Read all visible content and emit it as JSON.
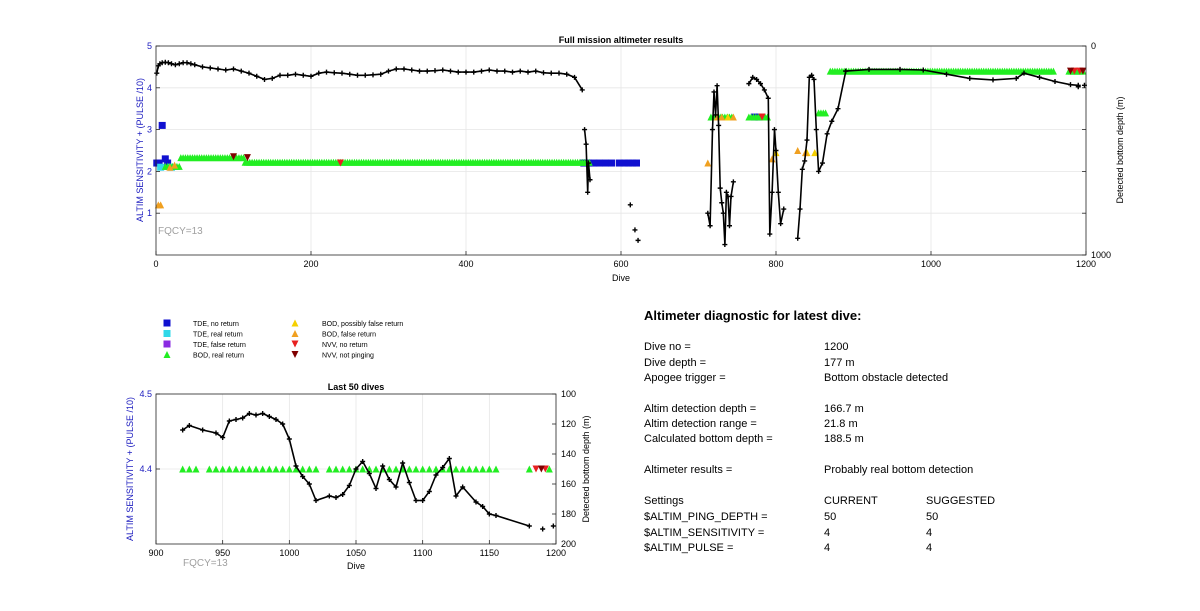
{
  "main_chart": {
    "title": "Full mission altimeter results",
    "xlabel": "Dive",
    "ylabel_left": "ALTIM SENSITIVITY + (PULSE /10)",
    "ylabel_right": "Detected bottom depth (m)",
    "annotation": "FQCY=13",
    "xlim": [
      0,
      1200
    ],
    "ylim_left": [
      0,
      5
    ],
    "ylim_right": [
      1000,
      0
    ],
    "x_ticks": [
      "0",
      "200",
      "400",
      "600",
      "800",
      "1000",
      "1200"
    ],
    "y_ticks_left": [
      "1",
      "2",
      "3",
      "4",
      "5"
    ],
    "y_ticks_right_shown": [
      "0",
      "1000"
    ]
  },
  "legend": {
    "items": [
      {
        "label": "TDE, no return",
        "marker": "square",
        "color": "#1010d0"
      },
      {
        "label": "TDE, real return",
        "marker": "square",
        "color": "#30d8e8"
      },
      {
        "label": "TDE, false return",
        "marker": "square",
        "color": "#8a2be2"
      },
      {
        "label": "BOD, real return",
        "marker": "triangle-up",
        "color": "#22ee22"
      },
      {
        "label": "BOD, possibly false return",
        "marker": "triangle-up",
        "color": "#f5d000"
      },
      {
        "label": "BOD, false return",
        "marker": "triangle-up",
        "color": "#f0a020"
      },
      {
        "label": "NVV, no return",
        "marker": "triangle-down",
        "color": "#e82020"
      },
      {
        "label": "NVV, not pinging",
        "marker": "triangle-down",
        "color": "#800000"
      }
    ]
  },
  "small_chart": {
    "title": "Last 50 dives",
    "xlabel": "Dive",
    "ylabel_left": "ALTIM SENSITIVITY + (PULSE /10)",
    "ylabel_right": "Detected bottom depth (m)",
    "annotation": "FQCY=13",
    "xlim": [
      900,
      1200
    ],
    "ylim_left": [
      4.3,
      4.5
    ],
    "ylim_right": [
      200,
      100
    ],
    "x_ticks": [
      "900",
      "950",
      "1000",
      "1050",
      "1100",
      "1150",
      "1200"
    ],
    "y_ticks_left": [
      "4.4",
      "4.5"
    ],
    "y_ticks_right": [
      "100",
      "120",
      "140",
      "160",
      "180",
      "200"
    ]
  },
  "diagnostic": {
    "title": "Altimeter diagnostic for latest dive:",
    "dive_no_label": "Dive no =",
    "dive_no": "1200",
    "dive_depth_label": "Dive depth =",
    "dive_depth": "177 m",
    "apogee_label": "Apogee trigger =",
    "apogee": "Bottom obstacle detected",
    "altim_depth_label": "Altim detection depth =",
    "altim_depth": "166.7 m",
    "altim_range_label": "Altim detection range =",
    "altim_range": "21.8 m",
    "calc_depth_label": "Calculated bottom depth =",
    "calc_depth": "188.5 m",
    "results_label": "Altimeter results =",
    "results": "Probably real bottom detection",
    "settings_label": "Settings",
    "current_label": "CURRENT",
    "suggested_label": "SUGGESTED",
    "ping_label": "$ALTIM_PING_DEPTH =",
    "ping_current": "50",
    "ping_suggested": "50",
    "sens_label": "$ALTIM_SENSITIVITY =",
    "sens_current": "4",
    "sens_suggested": "4",
    "pulse_label": "$ALTIM_PULSE =",
    "pulse_current": "4",
    "pulse_suggested": "4"
  },
  "colors": {
    "depth_line": "#000000",
    "left_axis_label": "#2020c0",
    "grid": "#e6e6e6",
    "annotation": "#a0a0a0"
  },
  "chart_data": [
    {
      "type": "scatter",
      "title": "Full mission altimeter results",
      "xlabel": "Dive",
      "ylabel": "ALTIM SENSITIVITY + (PULSE /10)",
      "y2label": "Detected bottom depth (m)",
      "xlim": [
        0,
        1200
      ],
      "ylim": [
        0,
        5
      ],
      "y2lim": [
        1000,
        0
      ],
      "grid": true,
      "series": [
        {
          "name": "TDE, no return",
          "marker": "square",
          "color": "#1010d0",
          "x": [
            1,
            4,
            8,
            12,
            15,
            552,
            558,
            565,
            572,
            580,
            588,
            598,
            605,
            610,
            615,
            620,
            772,
            778
          ],
          "y": [
            2.2,
            2.2,
            3.1,
            2.3,
            2.2,
            2.2,
            2.2,
            2.2,
            2.2,
            2.2,
            2.2,
            2.2,
            2.2,
            2.2,
            2.2,
            2.2,
            3.3,
            3.3
          ]
        },
        {
          "name": "TDE, real return",
          "marker": "square",
          "color": "#30d8e8",
          "x": [
            6,
            20
          ],
          "y": [
            2.1,
            2.1
          ]
        },
        {
          "name": "BOD, real return",
          "marker": "triangle-up",
          "color": "#22ee22",
          "segments": [
            {
              "x": [
                12,
                30
              ],
              "y": [
                2.12,
                2.12
              ]
            },
            {
              "x": [
                32,
                115
              ],
              "y": [
                2.33,
                2.33
              ]
            },
            {
              "x": [
                115,
                560
              ],
              "y": [
                2.22,
                2.22
              ]
            },
            {
              "x": [
                716,
                745
              ],
              "y": [
                3.3,
                3.3
              ]
            },
            {
              "x": [
                765,
                790
              ],
              "y": [
                3.3,
                3.3
              ]
            },
            {
              "x": [
                855,
                865
              ],
              "y": [
                3.4,
                3.4
              ]
            },
            {
              "x": [
                870,
                1160
              ],
              "y": [
                4.4,
                4.4
              ]
            },
            {
              "x": [
                1178,
                1198
              ],
              "y": [
                4.4,
                4.4
              ]
            }
          ]
        },
        {
          "name": "BOD, possibly false return",
          "marker": "triangle-up",
          "color": "#f5d000",
          "x": [
            738,
            800,
            840,
            850
          ],
          "y": [
            3.3,
            2.45,
            2.45,
            2.45
          ]
        },
        {
          "name": "BOD, false return",
          "marker": "triangle-up",
          "color": "#f0a020",
          "x": [
            3,
            6,
            18,
            24,
            712,
            724,
            730,
            745,
            795,
            828,
            838
          ],
          "y": [
            1.2,
            1.2,
            2.1,
            2.15,
            2.2,
            3.3,
            3.3,
            3.3,
            2.3,
            2.5,
            2.45
          ]
        },
        {
          "name": "NVV, no return",
          "marker": "triangle-down",
          "color": "#e82020",
          "x": [
            238,
            782,
            1185,
            1192
          ],
          "y": [
            2.2,
            3.3,
            4.4,
            4.4
          ]
        },
        {
          "name": "NVV, not pinging",
          "marker": "triangle-down",
          "color": "#800000",
          "x": [
            100,
            118,
            1180,
            1196
          ],
          "y": [
            2.35,
            2.33,
            4.4,
            4.4
          ]
        },
        {
          "name": "Detected bottom depth",
          "axis": "right",
          "marker": "plus",
          "color": "#000000",
          "segments": [
            {
              "x": [
                1,
                3,
                5,
                8,
                12,
                16,
                20,
                25,
                30,
                35,
                40,
                45,
                50,
                60,
                70,
                80,
                90,
                100,
                110,
                120,
                130,
                140,
                150,
                160,
                170,
                180,
                190,
                200,
                210,
                220,
                230,
                240,
                250,
                260,
                270,
                280,
                290,
                300,
                310,
                320,
                330,
                340,
                350,
                360,
                370,
                380,
                390,
                400,
                410,
                420,
                430,
                440,
                450,
                460,
                470,
                480,
                490,
                500,
                510,
                520,
                530,
                540,
                550
              ],
              "y": [
                130,
                95,
                85,
                80,
                78,
                80,
                85,
                90,
                85,
                80,
                80,
                85,
                90,
                100,
                105,
                110,
                115,
                110,
                120,
                130,
                145,
                160,
                155,
                140,
                140,
                135,
                140,
                145,
                130,
                125,
                128,
                130,
                135,
                140,
                140,
                138,
                135,
                120,
                110,
                110,
                115,
                120,
                120,
                118,
                115,
                120,
                125,
                125,
                125,
                120,
                115,
                120,
                120,
                125,
                120,
                125,
                120,
                128,
                130,
                130,
                135,
                150,
                210
              ]
            },
            {
              "x": [
                553,
                555,
                557,
                558,
                560
              ],
              "y": [
                400,
                470,
                700,
                560,
                640
              ]
            },
            {
              "x": [
                712,
                715,
                718,
                720,
                722,
                724,
                726,
                728,
                730,
                732,
                734,
                736,
                738,
                740,
                742,
                745
              ],
              "y": [
                800,
                860,
                400,
                220,
                330,
                190,
                380,
                680,
                750,
                800,
                950,
                700,
                720,
                860,
                720,
                650
              ]
            },
            {
              "x": [
                765,
                770,
                775,
                780,
                785,
                790,
                792,
                795,
                798,
                800,
                803,
                806,
                810
              ],
              "y": [
                180,
                150,
                160,
                180,
                210,
                250,
                900,
                700,
                400,
                500,
                700,
                850,
                780
              ]
            },
            {
              "x": [
                828,
                831,
                834,
                837,
                840,
                843,
                846,
                849,
                852,
                855,
                860,
                866,
                872,
                880,
                890
              ],
              "y": [
                920,
                780,
                590,
                550,
                450,
                150,
                140,
                160,
                400,
                600,
                560,
                420,
                360,
                300,
                120
              ]
            },
            {
              "x": [
                890,
                920,
                960,
                990,
                1020,
                1050,
                1080,
                1110,
                1120,
                1140,
                1160,
                1180,
                1190
              ],
              "y": [
                120,
                112,
                112,
                115,
                135,
                155,
                162,
                155,
                130,
                150,
                170,
                185,
                188
              ]
            }
          ],
          "isolated_points": {
            "x": [
              612,
              618,
              622,
              1190,
              1198
            ],
            "y": [
              760,
              880,
              930,
              195,
              188
            ]
          }
        }
      ]
    },
    {
      "type": "scatter",
      "title": "Last 50 dives",
      "xlabel": "Dive",
      "ylabel": "ALTIM SENSITIVITY + (PULSE /10)",
      "y2label": "Detected bottom depth (m)",
      "xlim": [
        900,
        1200
      ],
      "ylim": [
        4.3,
        4.5
      ],
      "y2lim": [
        200,
        100
      ],
      "grid": true,
      "series": [
        {
          "name": "BOD, real return",
          "marker": "triangle-up",
          "color": "#22ee22",
          "x": [
            920,
            925,
            930,
            940,
            945,
            950,
            955,
            960,
            965,
            970,
            975,
            980,
            985,
            990,
            995,
            1000,
            1005,
            1010,
            1015,
            1020,
            1030,
            1035,
            1040,
            1045,
            1050,
            1055,
            1060,
            1065,
            1070,
            1075,
            1080,
            1085,
            1090,
            1095,
            1100,
            1105,
            1110,
            1115,
            1120,
            1125,
            1130,
            1135,
            1140,
            1145,
            1150,
            1155,
            1180,
            1195
          ],
          "y": [
            4.4,
            4.4,
            4.4,
            4.4,
            4.4,
            4.4,
            4.4,
            4.4,
            4.4,
            4.4,
            4.4,
            4.4,
            4.4,
            4.4,
            4.4,
            4.4,
            4.4,
            4.4,
            4.4,
            4.4,
            4.4,
            4.4,
            4.4,
            4.4,
            4.4,
            4.4,
            4.4,
            4.4,
            4.4,
            4.4,
            4.4,
            4.4,
            4.4,
            4.4,
            4.4,
            4.4,
            4.4,
            4.4,
            4.4,
            4.4,
            4.4,
            4.4,
            4.4,
            4.4,
            4.4,
            4.4,
            4.4,
            4.4
          ]
        },
        {
          "name": "NVV, no return",
          "marker": "triangle-down",
          "color": "#e82020",
          "x": [
            1185,
            1192
          ],
          "y": [
            4.4,
            4.4
          ]
        },
        {
          "name": "NVV, not pinging",
          "marker": "triangle-down",
          "color": "#800000",
          "x": [
            1189
          ],
          "y": [
            4.4
          ]
        },
        {
          "name": "Detected bottom depth",
          "axis": "right",
          "marker": "plus",
          "color": "#000000",
          "x": [
            920,
            925,
            935,
            945,
            950,
            955,
            960,
            965,
            970,
            975,
            980,
            985,
            990,
            995,
            1000,
            1005,
            1010,
            1015,
            1020,
            1030,
            1035,
            1040,
            1045,
            1050,
            1055,
            1060,
            1065,
            1070,
            1075,
            1080,
            1085,
            1090,
            1095,
            1100,
            1105,
            1110,
            1115,
            1120,
            1125,
            1130,
            1140,
            1145,
            1150,
            1155,
            1180
          ],
          "y": [
            124,
            121,
            124,
            126,
            129,
            118,
            117,
            116,
            113,
            114,
            113,
            115,
            117,
            120,
            130,
            148,
            155,
            160,
            171,
            168,
            169,
            167,
            161,
            150,
            145,
            153,
            163,
            148,
            157,
            162,
            146,
            159,
            171,
            171,
            165,
            154,
            149,
            143,
            168,
            162,
            172,
            175,
            180,
            181,
            188
          ],
          "isolated_points": {
            "x": [
              1190,
              1198
            ],
            "y": [
              190,
              188
            ]
          }
        }
      ]
    }
  ]
}
